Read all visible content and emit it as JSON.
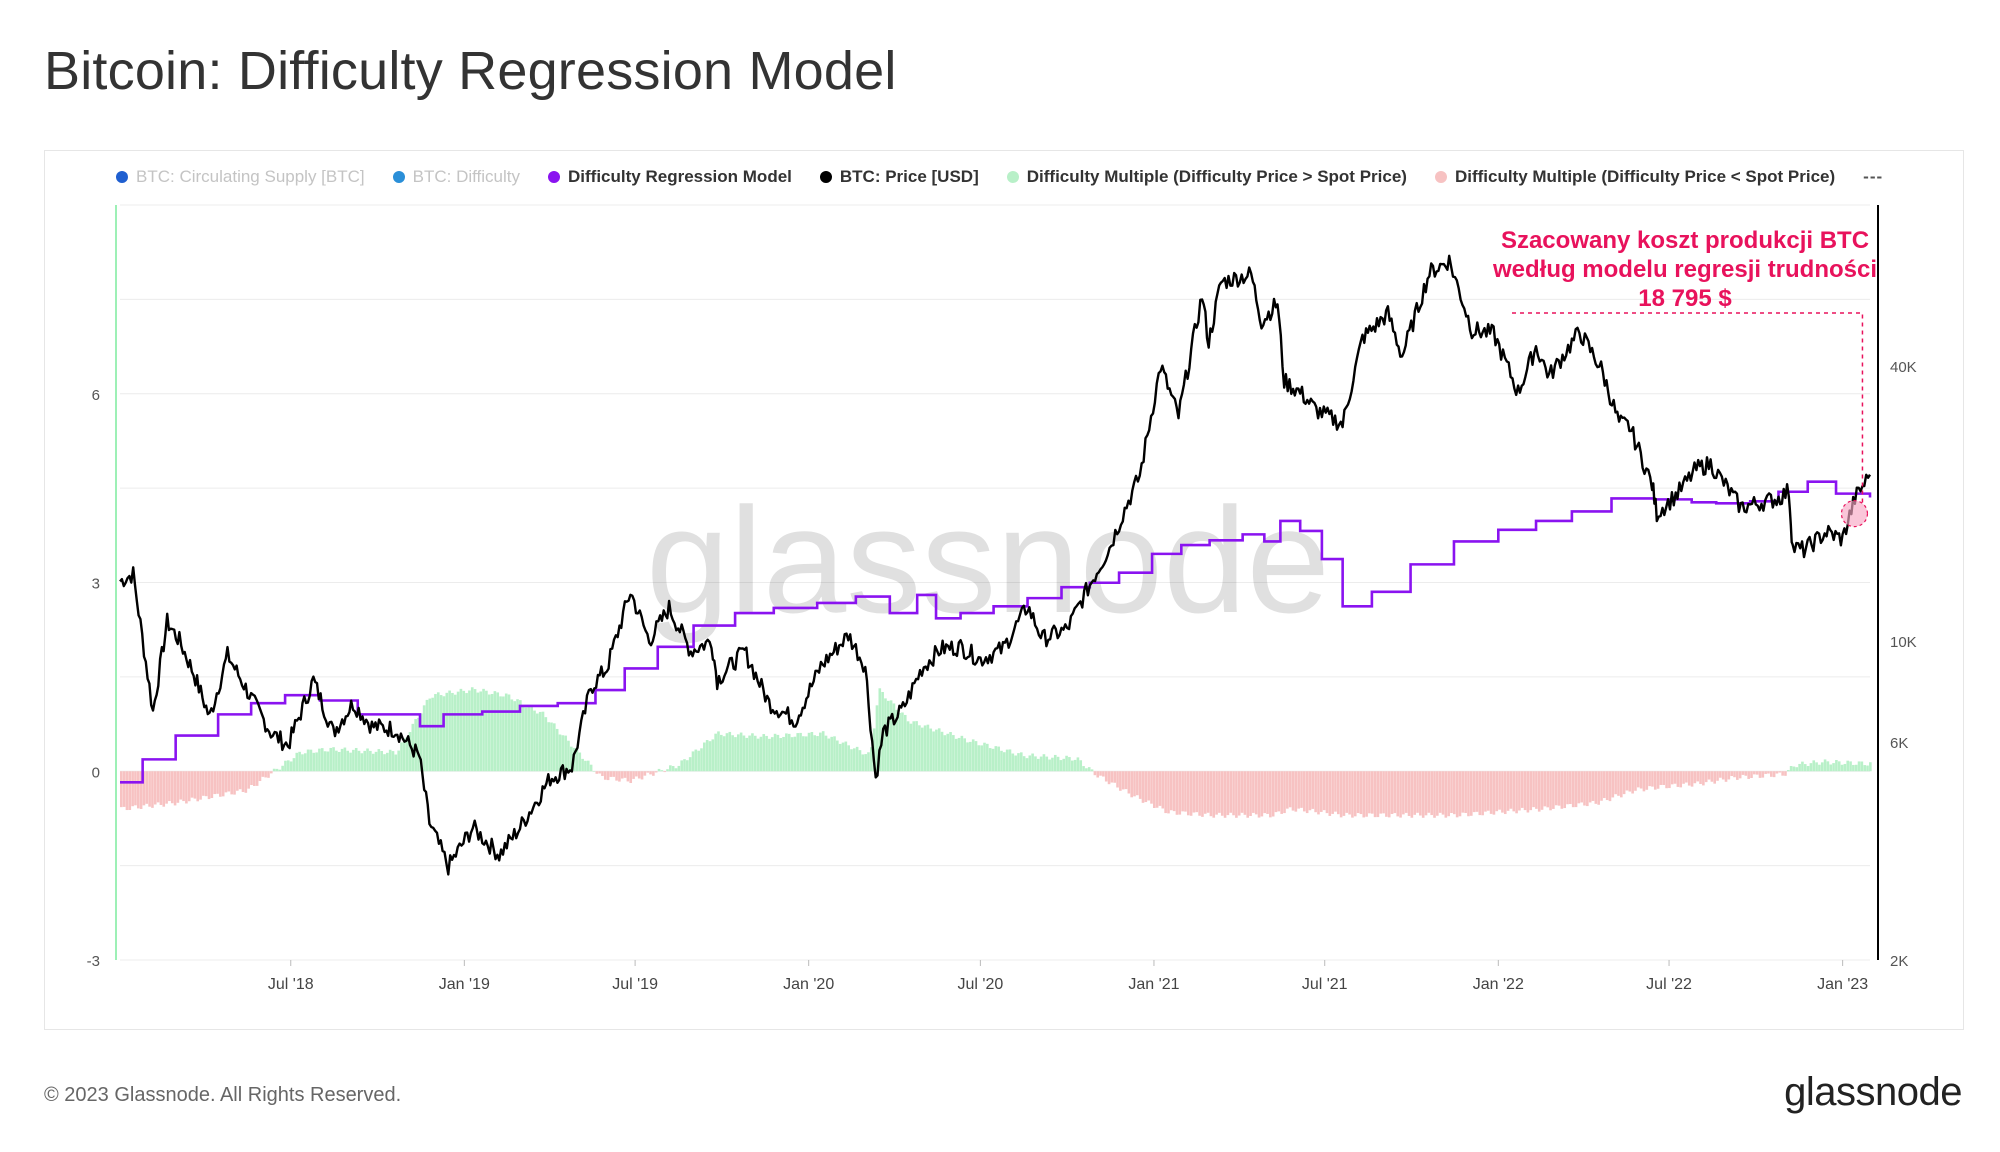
{
  "page": {
    "title": "Bitcoin: Difficulty Regression Model",
    "copyright": "© 2023 Glassnode. All Rights Reserved.",
    "logo": "glassnode",
    "watermark": "glassnode"
  },
  "legend": {
    "items": [
      {
        "label": "BTC: Circulating Supply [BTC]",
        "color": "#1f5fd0",
        "active": false
      },
      {
        "label": "BTC: Difficulty",
        "color": "#2a8fd8",
        "active": false
      },
      {
        "label": "Difficulty Regression Model",
        "color": "#8a13f0",
        "active": true
      },
      {
        "label": "BTC: Price [USD]",
        "color": "#000000",
        "active": true
      },
      {
        "label": "Difficulty Multiple (Difficulty Price > Spot Price)",
        "color": "#b8f0c8",
        "active": true
      },
      {
        "label": "Difficulty Multiple (Difficulty Price < Spot Price)",
        "color": "#f7c2c2",
        "active": true
      }
    ],
    "more": "---"
  },
  "annotation": {
    "line1": "Szacowany koszt produkcji BTC",
    "line2": "według modelu regresji trudności",
    "line3": "18 795 $",
    "color": "#e8125c"
  },
  "chart_data": {
    "type": "line",
    "x_ticks": [
      "Jul '18",
      "Jan '19",
      "Jul '19",
      "Jan '20",
      "Jul '20",
      "Jan '21",
      "Jul '21",
      "Jan '22",
      "Jul '22",
      "Jan '23"
    ],
    "x_range": [
      "2018-01-01",
      "2023-01-30"
    ],
    "y_left": {
      "ticks": [
        "-3",
        "0",
        "3",
        "6"
      ],
      "range": [
        -3,
        9
      ]
    },
    "y_right": {
      "ticks": [
        "2K",
        "6K",
        "10K",
        "40K"
      ],
      "scale": "log",
      "range": [
        2000,
        90000
      ]
    },
    "colors": {
      "price": "#000000",
      "model": "#8a13f0",
      "positive": "#b8f0c8",
      "negative": "#f7c2c2",
      "left_axis": "#9df0b6"
    },
    "series": [
      {
        "name": "BTC: Price [USD]",
        "axis": "right",
        "x": [
          "2018-01-01",
          "2018-01-15",
          "2018-02-05",
          "2018-02-20",
          "2018-03-05",
          "2018-03-20",
          "2018-04-06",
          "2018-04-25",
          "2018-05-20",
          "2018-06-10",
          "2018-06-28",
          "2018-07-25",
          "2018-08-15",
          "2018-09-05",
          "2018-09-25",
          "2018-10-20",
          "2018-11-14",
          "2018-11-25",
          "2018-12-15",
          "2019-01-10",
          "2019-02-07",
          "2019-03-01",
          "2019-04-02",
          "2019-04-25",
          "2019-05-15",
          "2019-06-01",
          "2019-06-26",
          "2019-07-16",
          "2019-08-06",
          "2019-08-29",
          "2019-09-20",
          "2019-09-26",
          "2019-10-25",
          "2019-11-20",
          "2019-12-18",
          "2020-01-14",
          "2020-02-12",
          "2020-03-01",
          "2020-03-12",
          "2020-03-20",
          "2020-04-10",
          "2020-04-30",
          "2020-05-20",
          "2020-06-10",
          "2020-07-01",
          "2020-07-25",
          "2020-08-20",
          "2020-09-05",
          "2020-10-01",
          "2020-10-21",
          "2020-11-15",
          "2020-12-01",
          "2020-12-17",
          "2021-01-08",
          "2021-01-27",
          "2021-02-21",
          "2021-02-28",
          "2021-03-13",
          "2021-04-14",
          "2021-04-25",
          "2021-05-12",
          "2021-05-19",
          "2021-06-05",
          "2021-06-22",
          "2021-07-20",
          "2021-08-10",
          "2021-09-06",
          "2021-09-21",
          "2021-10-20",
          "2021-11-10",
          "2021-11-26",
          "2021-12-04",
          "2021-12-27",
          "2022-01-22",
          "2022-02-10",
          "2022-02-24",
          "2022-03-28",
          "2022-04-20",
          "2022-05-09",
          "2022-05-20",
          "2022-06-13",
          "2022-06-18",
          "2022-07-10",
          "2022-07-30",
          "2022-08-14",
          "2022-09-15",
          "2022-10-25",
          "2022-11-05",
          "2022-11-09",
          "2022-11-21",
          "2022-12-15",
          "2023-01-01",
          "2023-01-14",
          "2023-01-30"
        ],
        "values": [
          13500,
          14000,
          7000,
          11000,
          10000,
          8500,
          6800,
          9300,
          7500,
          6300,
          5900,
          8200,
          6300,
          7300,
          6500,
          6400,
          5600,
          4000,
          3200,
          3900,
          3400,
          3900,
          5000,
          5300,
          7900,
          8700,
          12800,
          10000,
          11800,
          9500,
          10000,
          8200,
          9500,
          7300,
          6700,
          8800,
          10300,
          8800,
          5000,
          6300,
          7100,
          8700,
          9600,
          9700,
          9100,
          9600,
          11900,
          10100,
          10600,
          12800,
          16000,
          19400,
          23000,
          40000,
          31000,
          57000,
          45000,
          61000,
          63500,
          50000,
          55000,
          37000,
          35000,
          32000,
          29800,
          46000,
          52000,
          42000,
          64000,
          68000,
          54000,
          48000,
          47000,
          35000,
          44000,
          38000,
          47500,
          39500,
          30000,
          29500,
          22000,
          19000,
          21000,
          23800,
          24400,
          19600,
          20500,
          21300,
          16000,
          15800,
          17300,
          16700,
          20500,
          23100
        ]
      },
      {
        "name": "Difficulty Regression Model",
        "axis": "right",
        "x": [
          "2018-01-01",
          "2018-01-25",
          "2018-03-01",
          "2018-04-15",
          "2018-05-20",
          "2018-06-25",
          "2018-08-01",
          "2018-09-10",
          "2018-10-20",
          "2018-11-15",
          "2018-12-10",
          "2019-01-20",
          "2019-03-01",
          "2019-04-10",
          "2019-05-20",
          "2019-06-20",
          "2019-07-25",
          "2019-09-01",
          "2019-10-15",
          "2019-11-25",
          "2020-01-10",
          "2020-02-20",
          "2020-03-27",
          "2020-04-25",
          "2020-05-15",
          "2020-06-10",
          "2020-07-15",
          "2020-08-20",
          "2020-09-25",
          "2020-10-25",
          "2020-11-25",
          "2020-12-30",
          "2021-01-30",
          "2021-03-01",
          "2021-04-05",
          "2021-04-28",
          "2021-05-15",
          "2021-06-05",
          "2021-06-28",
          "2021-07-20",
          "2021-08-20",
          "2021-09-30",
          "2021-11-15",
          "2022-01-01",
          "2022-02-10",
          "2022-03-20",
          "2022-05-01",
          "2022-06-15",
          "2022-07-25",
          "2022-08-20",
          "2022-09-25",
          "2022-10-25",
          "2022-11-25",
          "2022-12-25",
          "2023-01-30"
        ],
        "values": [
          4900,
          5500,
          6200,
          6900,
          7300,
          7600,
          7400,
          6900,
          6900,
          6500,
          6900,
          7000,
          7200,
          7300,
          7800,
          8700,
          9700,
          10800,
          11500,
          11800,
          12100,
          12500,
          11500,
          12600,
          11200,
          11500,
          11900,
          12400,
          13100,
          13400,
          14100,
          15500,
          16200,
          16600,
          17100,
          16500,
          18300,
          17400,
          15100,
          11900,
          12800,
          14700,
          16500,
          17500,
          18300,
          19200,
          20500,
          20400,
          20100,
          20000,
          20200,
          21200,
          22300,
          21000,
          20600
        ]
      }
    ],
    "difficulty_multiple": {
      "axis": "left",
      "x": [
        "2018-01-01",
        "2018-03-01",
        "2018-05-15",
        "2018-07-10",
        "2018-08-10",
        "2018-10-20",
        "2018-11-25",
        "2019-01-10",
        "2019-02-15",
        "2019-03-25",
        "2019-05-01",
        "2019-05-25",
        "2019-06-25",
        "2019-08-15",
        "2019-09-25",
        "2019-11-15",
        "2020-01-15",
        "2020-03-05",
        "2020-03-14",
        "2020-04-15",
        "2020-06-15",
        "2020-08-15",
        "2020-10-10",
        "2020-10-30",
        "2020-12-10",
        "2021-01-15",
        "2021-03-01",
        "2021-05-05",
        "2021-05-25",
        "2021-06-25",
        "2021-07-20",
        "2021-09-15",
        "2021-11-15",
        "2021-12-30",
        "2022-02-15",
        "2022-04-15",
        "2022-05-25",
        "2022-06-20",
        "2022-07-30",
        "2022-09-10",
        "2022-10-30",
        "2022-11-10",
        "2022-12-10",
        "2023-01-30"
      ],
      "values": [
        -0.6,
        -0.5,
        -0.3,
        0.3,
        0.35,
        0.3,
        1.2,
        1.3,
        1.2,
        0.9,
        0.3,
        -0.1,
        -0.15,
        0.1,
        0.6,
        0.55,
        0.6,
        0.25,
        1.3,
        0.8,
        0.5,
        0.25,
        0.2,
        -0.05,
        -0.4,
        -0.65,
        -0.7,
        -0.7,
        -0.6,
        -0.65,
        -0.7,
        -0.7,
        -0.7,
        -0.65,
        -0.6,
        -0.5,
        -0.3,
        -0.25,
        -0.2,
        -0.1,
        -0.05,
        0.1,
        0.15,
        0.12
      ]
    }
  }
}
